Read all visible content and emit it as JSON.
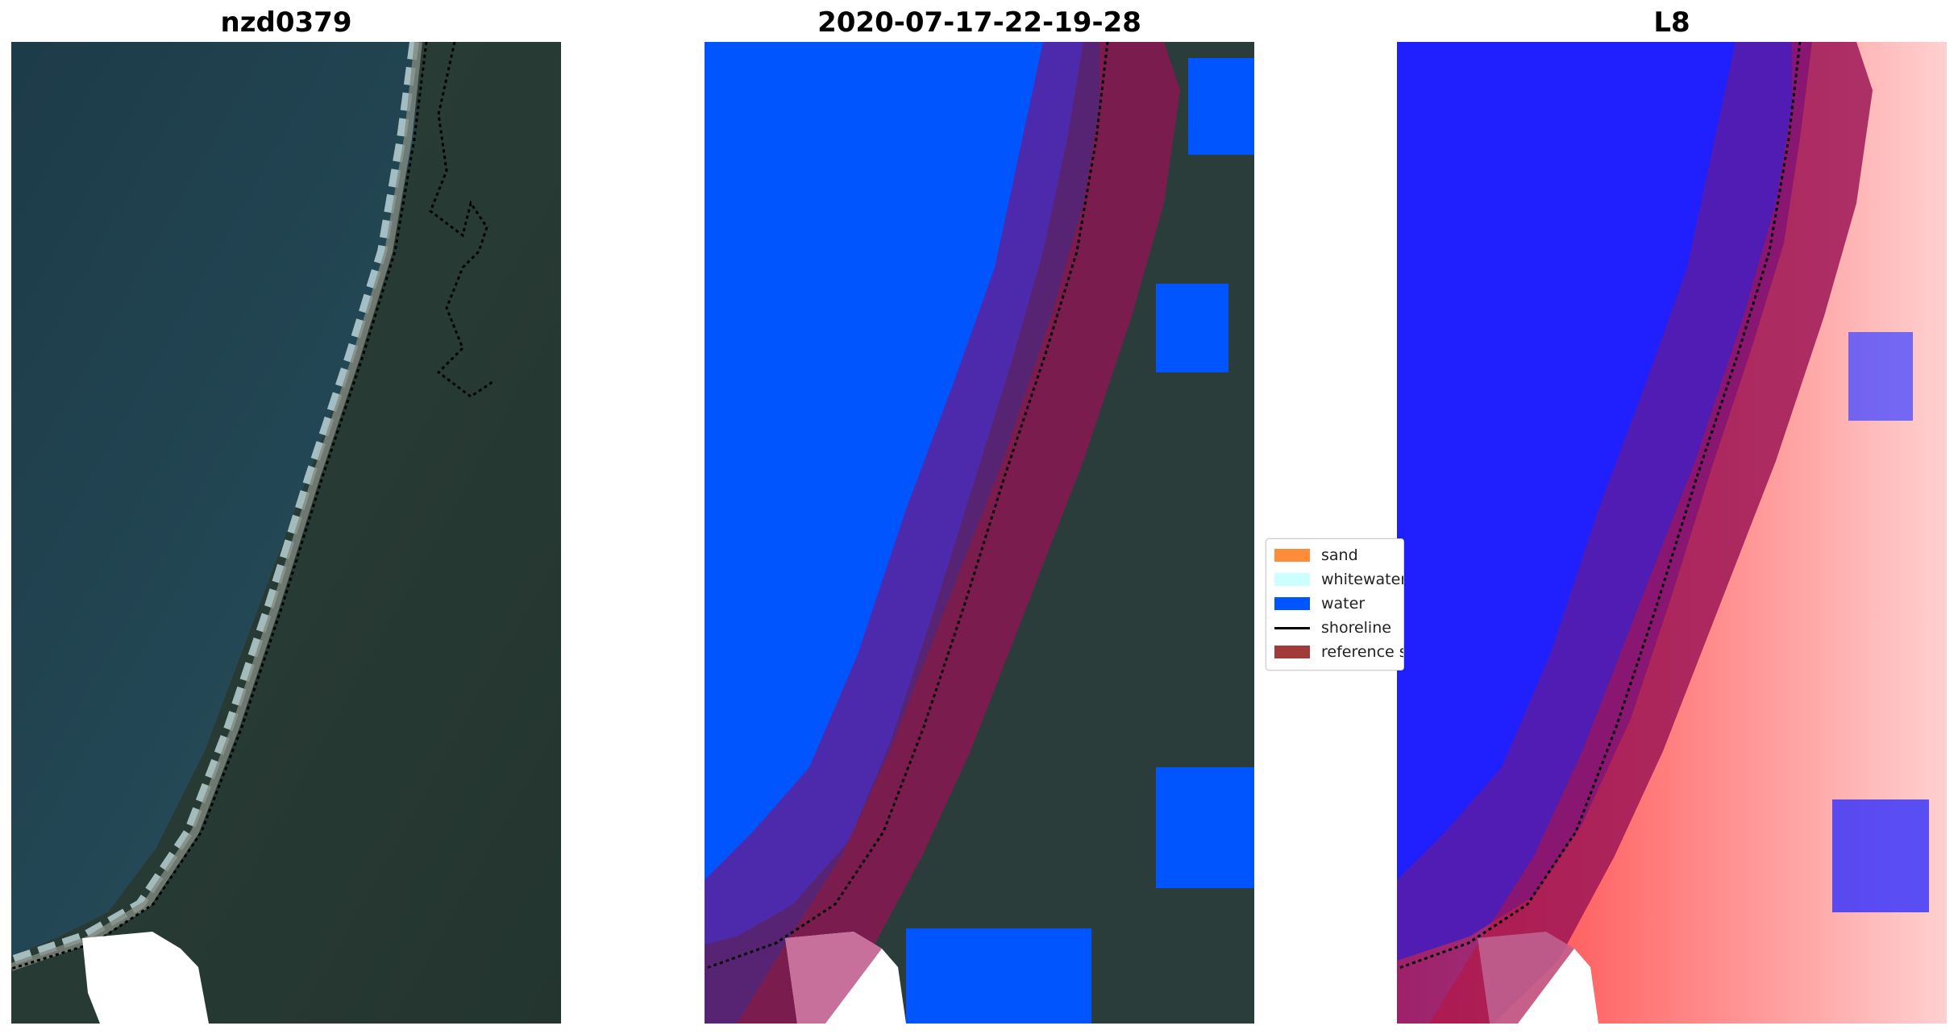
{
  "panels": [
    {
      "title": "nzd0379"
    },
    {
      "title": "2020-07-17-22-19-28"
    },
    {
      "title": "L8"
    }
  ],
  "legend": {
    "items": [
      {
        "label": "sand",
        "color": "#ff8c3a",
        "kind": "patch"
      },
      {
        "label": "whitewater",
        "color": "#ccffff",
        "kind": "patch"
      },
      {
        "label": "water",
        "color": "#0055ff",
        "kind": "patch"
      },
      {
        "label": "shoreline",
        "color": "#000000",
        "kind": "line"
      },
      {
        "label": "reference shoreline buffer",
        "color": "#a33a3a",
        "kind": "patch"
      }
    ]
  },
  "colors": {
    "ocean": "#1f3d4a",
    "land": "#2a3d3a",
    "water_class": "#0055ff",
    "buffer": "#6a1a8a",
    "reference": "#8a1a40",
    "index_water": "#2020ff",
    "index_land": "#ff3030"
  }
}
